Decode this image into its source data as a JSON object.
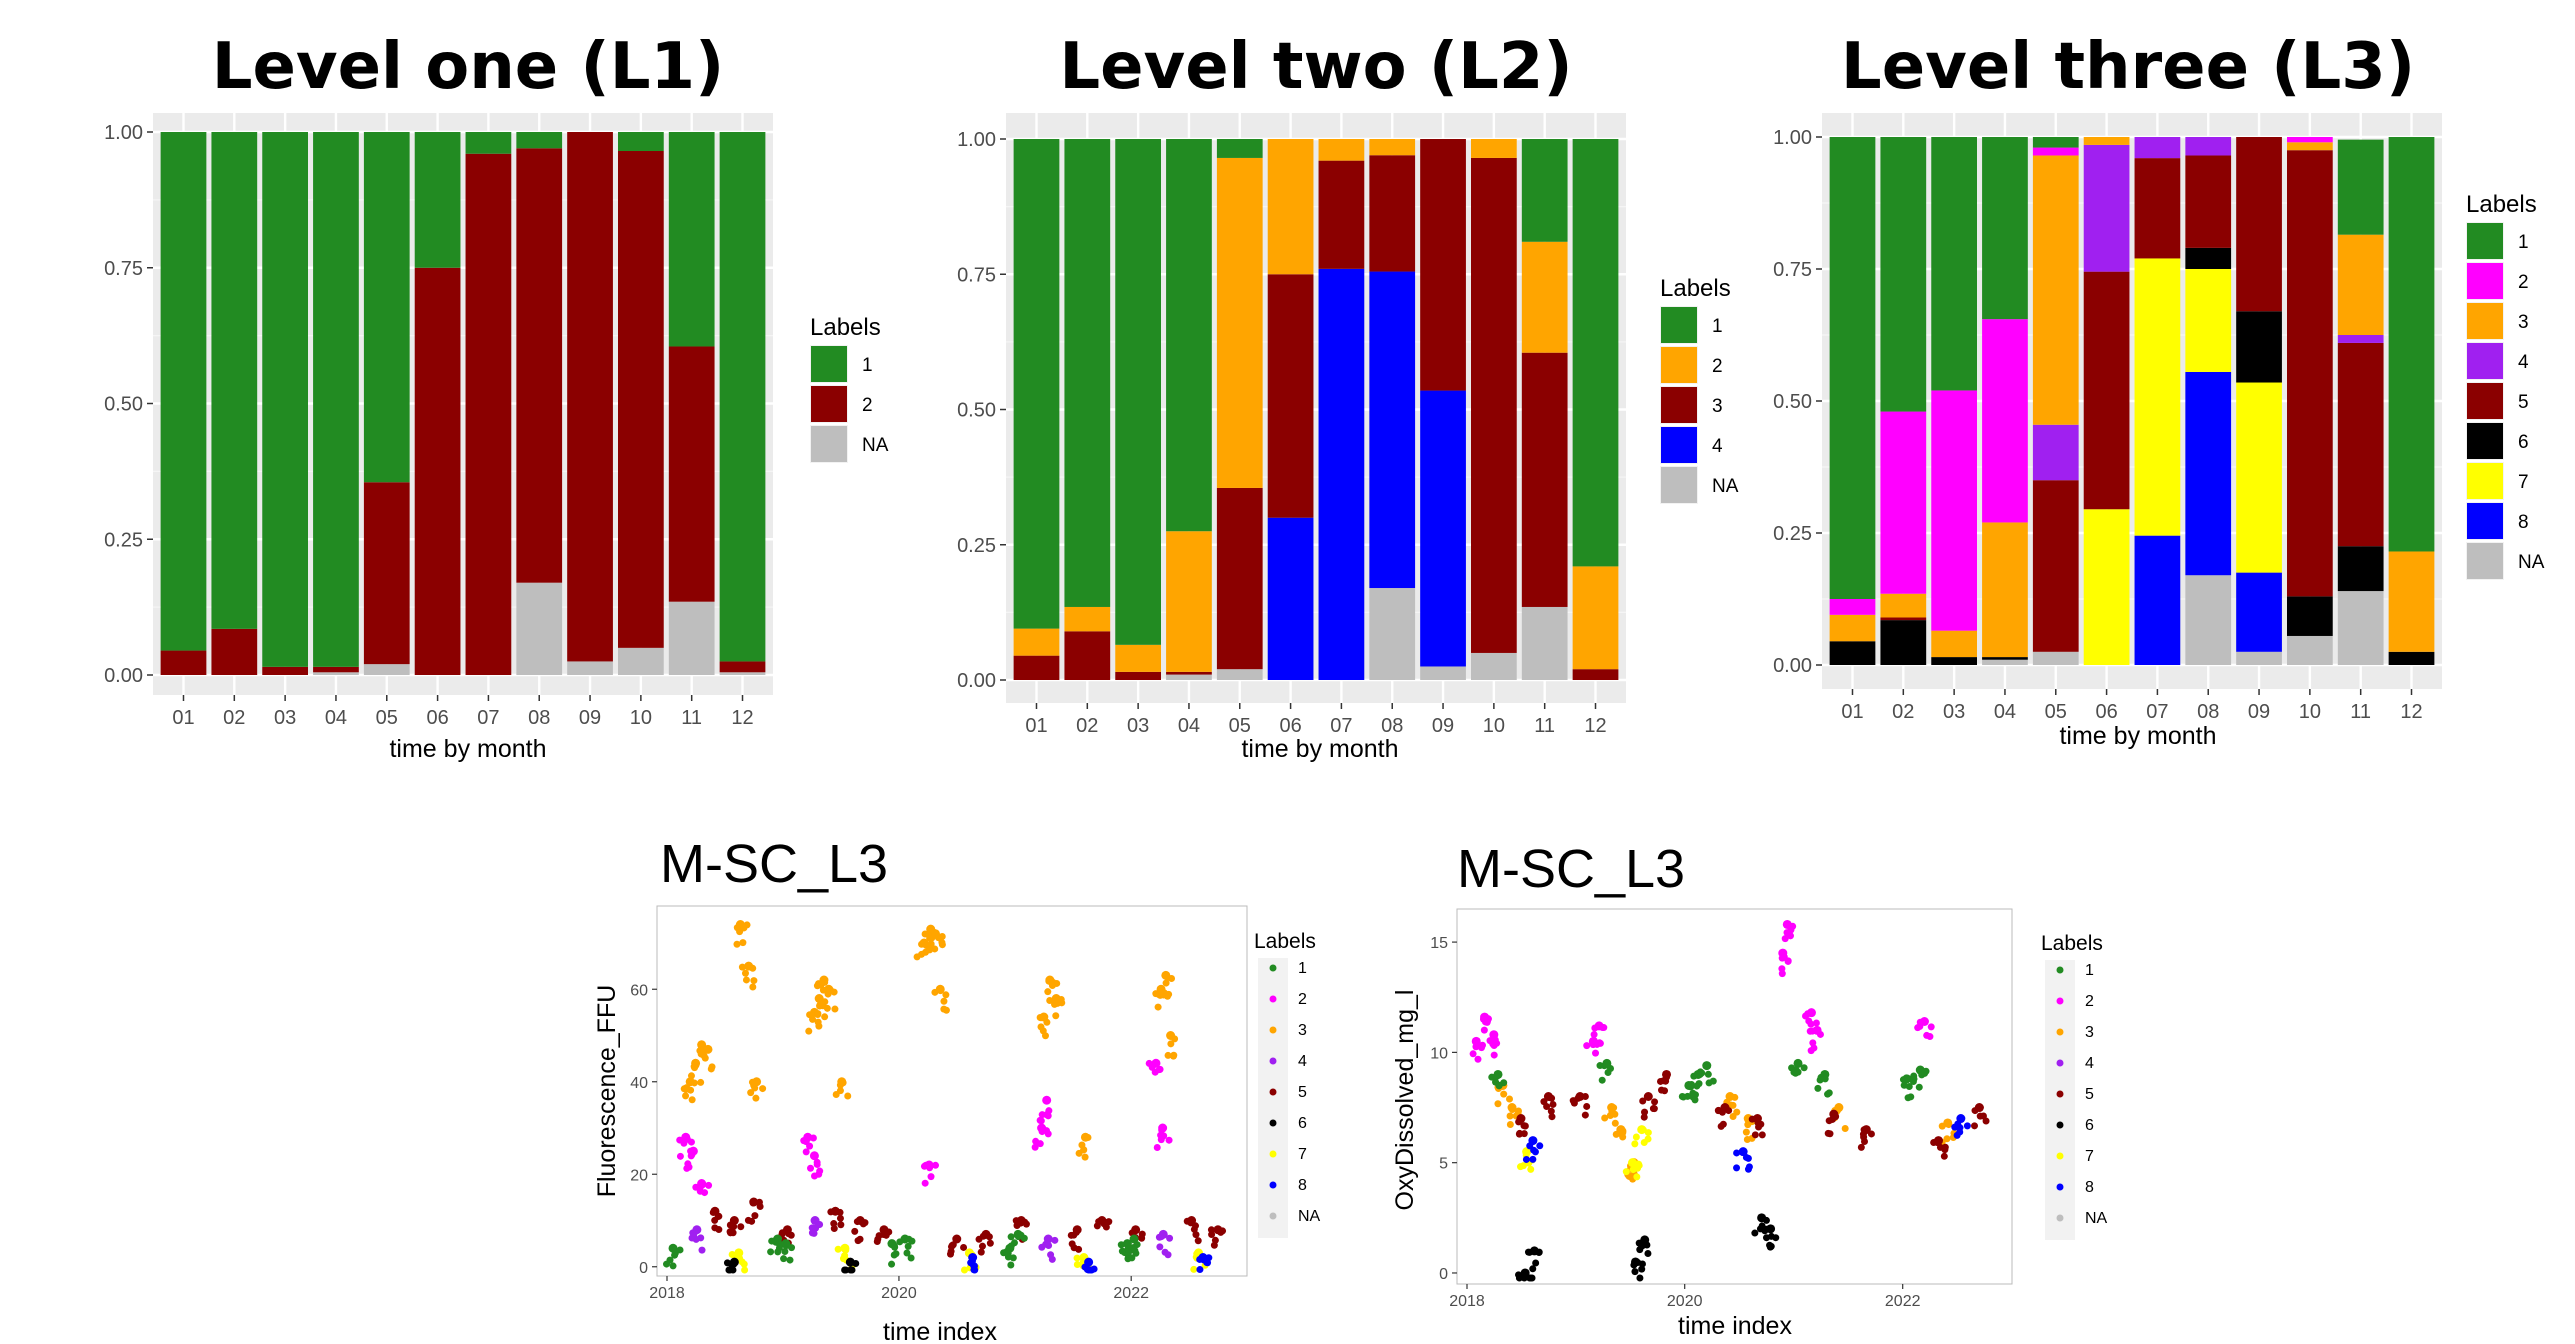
{
  "colors": {
    "1": "#228B22",
    "2": "#FF00FF",
    "3": "#FFA500",
    "4": "#A020F0",
    "5": "#8B0000",
    "6": "#000000",
    "7": "#FFFF00",
    "8": "#0000FF",
    "NA": "#BEBEBE",
    "L2_1": "#228B22",
    "L2_2": "#FFA500",
    "L2_3": "#8B0000",
    "L2_4": "#0000FF",
    "L1_1": "#228B22",
    "L1_2": "#8B0000"
  },
  "chart_data": [
    {
      "type": "bar",
      "stacked": true,
      "title": "Level one (L1)",
      "xlabel": "time by month",
      "ylabel": "",
      "ylim": [
        0,
        1
      ],
      "yticks": [
        "0.00",
        "0.25",
        "0.50",
        "0.75",
        "1.00"
      ],
      "categories": [
        "01",
        "02",
        "03",
        "04",
        "05",
        "06",
        "07",
        "08",
        "09",
        "10",
        "11",
        "12"
      ],
      "legend_title": "Labels",
      "legend_position": "right",
      "stack_order_bottom_to_top": [
        "NA",
        "2",
        "1"
      ],
      "series": [
        {
          "name": "1",
          "color": "#228B22",
          "values": [
            0.955,
            0.915,
            0.985,
            0.985,
            0.645,
            0.25,
            0.04,
            0.03,
            0.0,
            0.035,
            0.395,
            0.975
          ]
        },
        {
          "name": "2",
          "color": "#8B0000",
          "values": [
            0.045,
            0.085,
            0.015,
            0.01,
            0.335,
            0.75,
            0.96,
            0.8,
            0.975,
            0.915,
            0.47,
            0.02
          ]
        },
        {
          "name": "NA",
          "color": "#BEBEBE",
          "values": [
            0.0,
            0.0,
            0.0,
            0.005,
            0.02,
            0.0,
            0.0,
            0.17,
            0.025,
            0.05,
            0.135,
            0.005
          ]
        }
      ]
    },
    {
      "type": "bar",
      "stacked": true,
      "title": "Level two (L2)",
      "xlabel": "time by month",
      "ylabel": "",
      "ylim": [
        0,
        1
      ],
      "yticks": [
        "0.00",
        "0.25",
        "0.50",
        "0.75",
        "1.00"
      ],
      "categories": [
        "01",
        "02",
        "03",
        "04",
        "05",
        "06",
        "07",
        "08",
        "09",
        "10",
        "11",
        "12"
      ],
      "legend_title": "Labels",
      "legend_position": "right",
      "stack_order_bottom_to_top": [
        "NA",
        "4",
        "3",
        "2",
        "1"
      ],
      "series": [
        {
          "name": "1",
          "color": "#228B22",
          "values": [
            0.905,
            0.865,
            0.935,
            0.725,
            0.035,
            0.0,
            0.0,
            0.0,
            0.0,
            0.0,
            0.19,
            0.79
          ]
        },
        {
          "name": "2",
          "color": "#FFA500",
          "values": [
            0.05,
            0.045,
            0.05,
            0.26,
            0.61,
            0.25,
            0.04,
            0.03,
            0.0,
            0.035,
            0.205,
            0.19
          ]
        },
        {
          "name": "3",
          "color": "#8B0000",
          "values": [
            0.045,
            0.09,
            0.015,
            0.005,
            0.335,
            0.45,
            0.2,
            0.215,
            0.465,
            0.915,
            0.47,
            0.02
          ]
        },
        {
          "name": "4",
          "color": "#0000FF",
          "values": [
            0.0,
            0.0,
            0.0,
            0.0,
            0.0,
            0.3,
            0.76,
            0.585,
            0.51,
            0.0,
            0.0,
            0.0
          ]
        },
        {
          "name": "NA",
          "color": "#BEBEBE",
          "values": [
            0.0,
            0.0,
            0.0,
            0.01,
            0.02,
            0.0,
            0.0,
            0.17,
            0.025,
            0.05,
            0.135,
            0.0
          ]
        }
      ]
    },
    {
      "type": "bar",
      "stacked": true,
      "title": "Level three (L3)",
      "xlabel": "time by month",
      "ylabel": "",
      "ylim": [
        0,
        1
      ],
      "yticks": [
        "0.00",
        "0.25",
        "0.50",
        "0.75",
        "1.00"
      ],
      "categories": [
        "01",
        "02",
        "03",
        "04",
        "05",
        "06",
        "07",
        "08",
        "09",
        "10",
        "11",
        "12"
      ],
      "legend_title": "Labels",
      "legend_position": "right",
      "stack_order_bottom_to_top": [
        "NA",
        "8",
        "7",
        "6",
        "5",
        "4",
        "3",
        "2",
        "1"
      ],
      "series": [
        {
          "name": "1",
          "color": "#228B22",
          "values": [
            0.875,
            0.52,
            0.48,
            0.345,
            0.02,
            0.0,
            0.0,
            0.0,
            0.0,
            0.0,
            0.18,
            0.785
          ]
        },
        {
          "name": "2",
          "color": "#FF00FF",
          "values": [
            0.03,
            0.345,
            0.455,
            0.385,
            0.015,
            0.0,
            0.0,
            0.0,
            0.0,
            0.01,
            0.0,
            0.0
          ]
        },
        {
          "name": "3",
          "color": "#FFA500",
          "values": [
            0.05,
            0.045,
            0.05,
            0.255,
            0.51,
            0.015,
            0.0,
            0.0,
            0.0,
            0.015,
            0.19,
            0.19
          ]
        },
        {
          "name": "4",
          "color": "#A020F0",
          "values": [
            0.0,
            0.0,
            0.0,
            0.0,
            0.105,
            0.24,
            0.04,
            0.035,
            0.0,
            0.0,
            0.015,
            0.0
          ]
        },
        {
          "name": "5",
          "color": "#8B0000",
          "values": [
            0.0,
            0.005,
            0.0,
            0.0,
            0.325,
            0.45,
            0.19,
            0.175,
            0.33,
            0.845,
            0.385,
            0.0
          ]
        },
        {
          "name": "6",
          "color": "#000000",
          "values": [
            0.045,
            0.085,
            0.015,
            0.005,
            0.0,
            0.0,
            0.0,
            0.04,
            0.135,
            0.075,
            0.085,
            0.025
          ]
        },
        {
          "name": "7",
          "color": "#FFFF00",
          "values": [
            0.0,
            0.0,
            0.0,
            0.0,
            0.0,
            0.295,
            0.525,
            0.195,
            0.36,
            0.0,
            0.0,
            0.0
          ]
        },
        {
          "name": "8",
          "color": "#0000FF",
          "values": [
            0.0,
            0.0,
            0.0,
            0.0,
            0.0,
            0.0,
            0.245,
            0.385,
            0.15,
            0.0,
            0.0,
            0.0
          ]
        },
        {
          "name": "NA",
          "color": "#BEBEBE",
          "values": [
            0.0,
            0.0,
            0.0,
            0.01,
            0.025,
            0.0,
            0.0,
            0.17,
            0.025,
            0.055,
            0.14,
            0.0
          ]
        }
      ]
    },
    {
      "type": "scatter",
      "title": "M-SC_L3",
      "xlabel": "time index",
      "ylabel": "Fluorescence_FFU",
      "xlim": [
        "2018-01-01",
        "2022-11-30"
      ],
      "xticks": [
        "2018",
        "2020",
        "2022"
      ],
      "ylim": [
        -2,
        78
      ],
      "yticks": [
        "0",
        "20",
        "40",
        "60"
      ],
      "legend_title": "Labels",
      "legend_position": "right",
      "legend_labels": [
        "1",
        "2",
        "3",
        "4",
        "5",
        "6",
        "7",
        "8",
        "NA"
      ],
      "series": [
        {
          "name": "3",
          "x": [
            "2018-03-15",
            "2018-04-01",
            "2018-04-20",
            "2018-05-10",
            "2018-08-20",
            "2018-09-15",
            "2018-10-10",
            "2019-04-10",
            "2019-04-25",
            "2019-05-10",
            "2019-05-25",
            "2019-07-05",
            "2020-03-20",
            "2020-04-10",
            "2020-04-25",
            "2020-05-10",
            "2021-04-01",
            "2021-04-20",
            "2021-05-10",
            "2021-08-10",
            "2022-04-05",
            "2022-04-20",
            "2022-05-05"
          ],
          "y": [
            40,
            44,
            48,
            47,
            74,
            65,
            40,
            55,
            58,
            62,
            60,
            40,
            70,
            73,
            72,
            60,
            54,
            62,
            58,
            28,
            60,
            63,
            50
          ]
        },
        {
          "name": "2",
          "x": [
            "2018-03-01",
            "2018-03-25",
            "2018-04-20",
            "2019-03-20",
            "2019-04-10",
            "2020-04-05",
            "2021-03-25",
            "2021-04-10",
            "2022-03-20",
            "2022-04-10"
          ],
          "y": [
            28,
            25,
            18,
            28,
            24,
            22,
            30,
            36,
            44,
            30
          ]
        },
        {
          "name": "5",
          "x": [
            "2018-06-01",
            "2018-08-01",
            "2018-10-01",
            "2019-01-15",
            "2019-06-15",
            "2019-09-01",
            "2019-11-15",
            "2020-07-01",
            "2020-10-01",
            "2021-01-20",
            "2021-07-15",
            "2021-10-01",
            "2022-01-15",
            "2022-07-10",
            "2022-10-01"
          ],
          "y": [
            12,
            10,
            14,
            8,
            12,
            10,
            8,
            6,
            7,
            10,
            8,
            10,
            8,
            10,
            8
          ]
        },
        {
          "name": "1",
          "x": [
            "2018-01-20",
            "2018-12-15",
            "2019-01-10",
            "2019-12-10",
            "2020-01-20",
            "2020-12-15",
            "2021-01-10",
            "2021-12-20",
            "2022-01-10"
          ],
          "y": [
            4,
            6,
            5,
            5,
            6,
            4,
            7,
            5,
            6
          ]
        },
        {
          "name": "7",
          "x": [
            "2018-08-15",
            "2019-07-15",
            "2020-08-10",
            "2021-08-05",
            "2022-08-01"
          ],
          "y": [
            3,
            4,
            3,
            2,
            3
          ]
        },
        {
          "name": "8",
          "x": [
            "2020-08-20",
            "2021-08-20",
            "2022-08-15"
          ],
          "y": [
            2,
            1,
            2
          ]
        },
        {
          "name": "4",
          "x": [
            "2018-04-05",
            "2019-04-12",
            "2021-04-15",
            "2022-04-12"
          ],
          "y": [
            8,
            10,
            6,
            7
          ]
        },
        {
          "name": "6",
          "x": [
            "2018-08-01",
            "2019-08-01"
          ],
          "y": [
            1,
            1
          ]
        }
      ]
    },
    {
      "type": "scatter",
      "title": "M-SC_L3",
      "xlabel": "time index",
      "ylabel": "OxyDissolved_mg_l",
      "xlim": [
        "2018-01-01",
        "2022-11-30"
      ],
      "xticks": [
        "2018",
        "2020",
        "2022"
      ],
      "ylim": [
        -0.5,
        16.5
      ],
      "yticks": [
        "0",
        "5",
        "10",
        "15"
      ],
      "legend_title": "Labels",
      "legend_position": "right",
      "legend_labels": [
        "1",
        "2",
        "3",
        "4",
        "5",
        "6",
        "7",
        "8",
        "NA"
      ],
      "series": [
        {
          "name": "2",
          "x": [
            "2018-02-01",
            "2018-03-01",
            "2018-04-01",
            "2019-03-01",
            "2019-03-20",
            "2020-11-25",
            "2020-12-10",
            "2021-03-01",
            "2021-03-20",
            "2022-03-15"
          ],
          "y": [
            10.5,
            11.6,
            10.8,
            10.5,
            11.2,
            14.5,
            15.8,
            11.8,
            11.0,
            11.4
          ]
        },
        {
          "name": "3",
          "x": [
            "2018-05-01",
            "2018-06-01",
            "2019-05-01",
            "2019-06-01",
            "2019-07-15",
            "2020-06-01",
            "2020-08-01",
            "2021-06-01",
            "2022-06-01"
          ],
          "y": [
            8.5,
            7.5,
            7.5,
            6.5,
            5.0,
            8.0,
            7.0,
            7.5,
            6.8
          ]
        },
        {
          "name": "1",
          "x": [
            "2018-04-15",
            "2019-04-15",
            "2020-01-15",
            "2020-02-15",
            "2020-03-15",
            "2021-01-15",
            "2021-04-15",
            "2022-01-15",
            "2022-03-01"
          ],
          "y": [
            9.0,
            9.5,
            8.5,
            9.0,
            9.4,
            9.5,
            9.0,
            8.8,
            9.2
          ]
        },
        {
          "name": "5",
          "x": [
            "2018-07-01",
            "2018-10-01",
            "2019-01-15",
            "2019-09-01",
            "2019-11-01",
            "2020-05-15",
            "2020-09-01",
            "2021-05-15",
            "2021-09-01",
            "2022-05-01",
            "2022-09-15"
          ],
          "y": [
            7.0,
            8.0,
            8.0,
            8.0,
            9.0,
            7.5,
            7.0,
            7.2,
            6.5,
            6.0,
            7.5
          ]
        },
        {
          "name": "6",
          "x": [
            "2018-07-15",
            "2018-08-15",
            "2019-07-20",
            "2019-08-20",
            "2020-09-15",
            "2020-10-15"
          ],
          "y": [
            0.0,
            1.0,
            0.5,
            1.5,
            2.5,
            2.0
          ]
        },
        {
          "name": "7",
          "x": [
            "2018-07-20",
            "2019-07-10",
            "2019-08-10"
          ],
          "y": [
            5.5,
            5.0,
            6.5
          ]
        },
        {
          "name": "8",
          "x": [
            "2018-08-10",
            "2020-07-15",
            "2022-07-15"
          ],
          "y": [
            6.0,
            5.5,
            7.0
          ]
        }
      ]
    }
  ]
}
